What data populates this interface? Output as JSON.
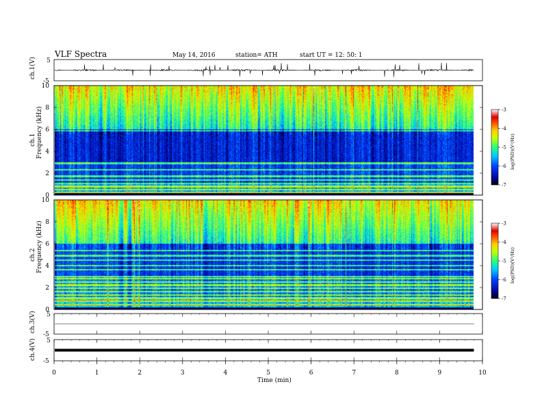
{
  "header": {
    "title": "VLF  Spectra",
    "date": "May 14,  2016",
    "station": "station= ATH",
    "start": "start  UT  =    12: 50: 1"
  },
  "chart_data": [
    {
      "type": "line",
      "panel": "ch1-waveform",
      "ylabel": "ch.1(V)",
      "ylim": [
        -5,
        5
      ],
      "yticks": [
        "5",
        "-5"
      ],
      "xlim": [
        0,
        10
      ],
      "baseline_v": 0,
      "noise_amplitude_v": 0.4,
      "spike_amplitude_v": 3.5,
      "data_end_min": 9.8
    },
    {
      "type": "heatmap",
      "panel": "ch1-spectrogram",
      "ylabel": "Frequency  (kHz)",
      "channel": "ch.1",
      "ylim": [
        0,
        10
      ],
      "yticks": [
        "0",
        "2",
        "4",
        "6",
        "8",
        "10"
      ],
      "xlim": [
        0,
        10
      ],
      "data_end_min": 9.8,
      "colorbar": {
        "label": "log(PSD)(V²/Hz)",
        "range": [
          -7,
          -3
        ],
        "ticks": [
          "-3",
          "-4",
          "-5",
          "-6",
          "-7"
        ]
      }
    },
    {
      "type": "heatmap",
      "panel": "ch2-spectrogram",
      "ylabel": "Frequency  (kHz)",
      "channel": "ch.2",
      "ylim": [
        0,
        10
      ],
      "yticks": [
        "0",
        "2",
        "4",
        "6",
        "8",
        "10"
      ],
      "xlim": [
        0,
        10
      ],
      "data_end_min": 9.8,
      "colorbar": {
        "label": "log(PSD)(V²/Hz)",
        "range": [
          -7,
          -3
        ],
        "ticks": [
          "-3",
          "-4",
          "-5",
          "-6",
          "-7"
        ]
      }
    },
    {
      "type": "line",
      "panel": "ch3-waveform",
      "ylabel": "ch.3(V)",
      "ylim": [
        -5,
        5
      ],
      "yticks": [
        "5",
        "-5"
      ],
      "xlim": [
        0,
        10
      ],
      "baseline_v": 0,
      "data_end_min": 9.8
    },
    {
      "type": "line",
      "panel": "ch4-waveform",
      "ylabel": "ch.4(V)",
      "ylim": [
        -5,
        5
      ],
      "yticks": [
        "5",
        "-5"
      ],
      "xlim": [
        0,
        10
      ],
      "baseline_v": 0,
      "data_end_min": 9.8
    }
  ],
  "xaxis": {
    "label": "Time  (min)",
    "ticks": [
      "0",
      "1",
      "2",
      "3",
      "4",
      "5",
      "6",
      "7",
      "8",
      "9",
      "10"
    ]
  }
}
